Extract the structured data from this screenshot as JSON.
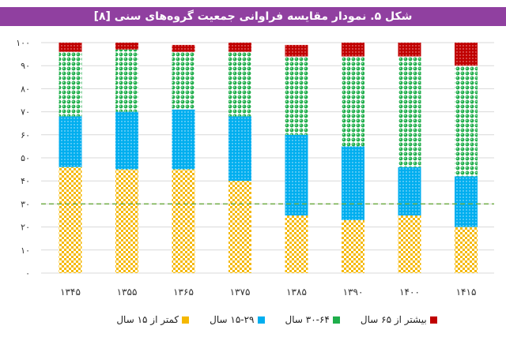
{
  "chart_data": {
    "type": "bar",
    "stacked": true,
    "title": "شکل ۵. نمودار مقایسه فراوانی جمعیت گروه‌های سنی [۸]",
    "categories": [
      "۱۳۴۵",
      "۱۳۵۵",
      "۱۳۶۵",
      "۱۳۷۵",
      "۱۳۸۵",
      "۱۳۹۰",
      "۱۴۰۰",
      "۱۴۱۵"
    ],
    "series": [
      {
        "name": "کمتر از ۱۵ سال",
        "color": "#f5b800",
        "values": [
          46,
          45,
          45,
          40,
          25,
          23,
          25,
          20
        ]
      },
      {
        "name": "۱۵-۲۹ سال",
        "color": "#00aeef",
        "values": [
          22,
          25,
          26,
          28,
          35,
          32,
          21,
          22
        ]
      },
      {
        "name": "۳۰-۶۴ سال",
        "color": "#1fae4b",
        "values": [
          28,
          27,
          25,
          28,
          34,
          39,
          48,
          48
        ]
      },
      {
        "name": "بیشتر از ۶۵ سال",
        "color": "#c00000",
        "values": [
          4,
          3,
          3,
          4,
          5,
          6,
          6,
          10
        ]
      }
    ],
    "yticks": [
      "۰",
      "۱۰",
      "۲۰",
      "۳۰",
      "۴۰",
      "۵۰",
      "۶۰",
      "۷۰",
      "۸۰",
      "۹۰",
      "۱۰۰"
    ],
    "ylim": [
      0,
      100
    ],
    "reference_line": {
      "value": 30,
      "color": "#70ad47",
      "style": "dashed"
    },
    "grid": true,
    "legend_placement": "bottom",
    "title_bar_color": "#9040a0"
  }
}
